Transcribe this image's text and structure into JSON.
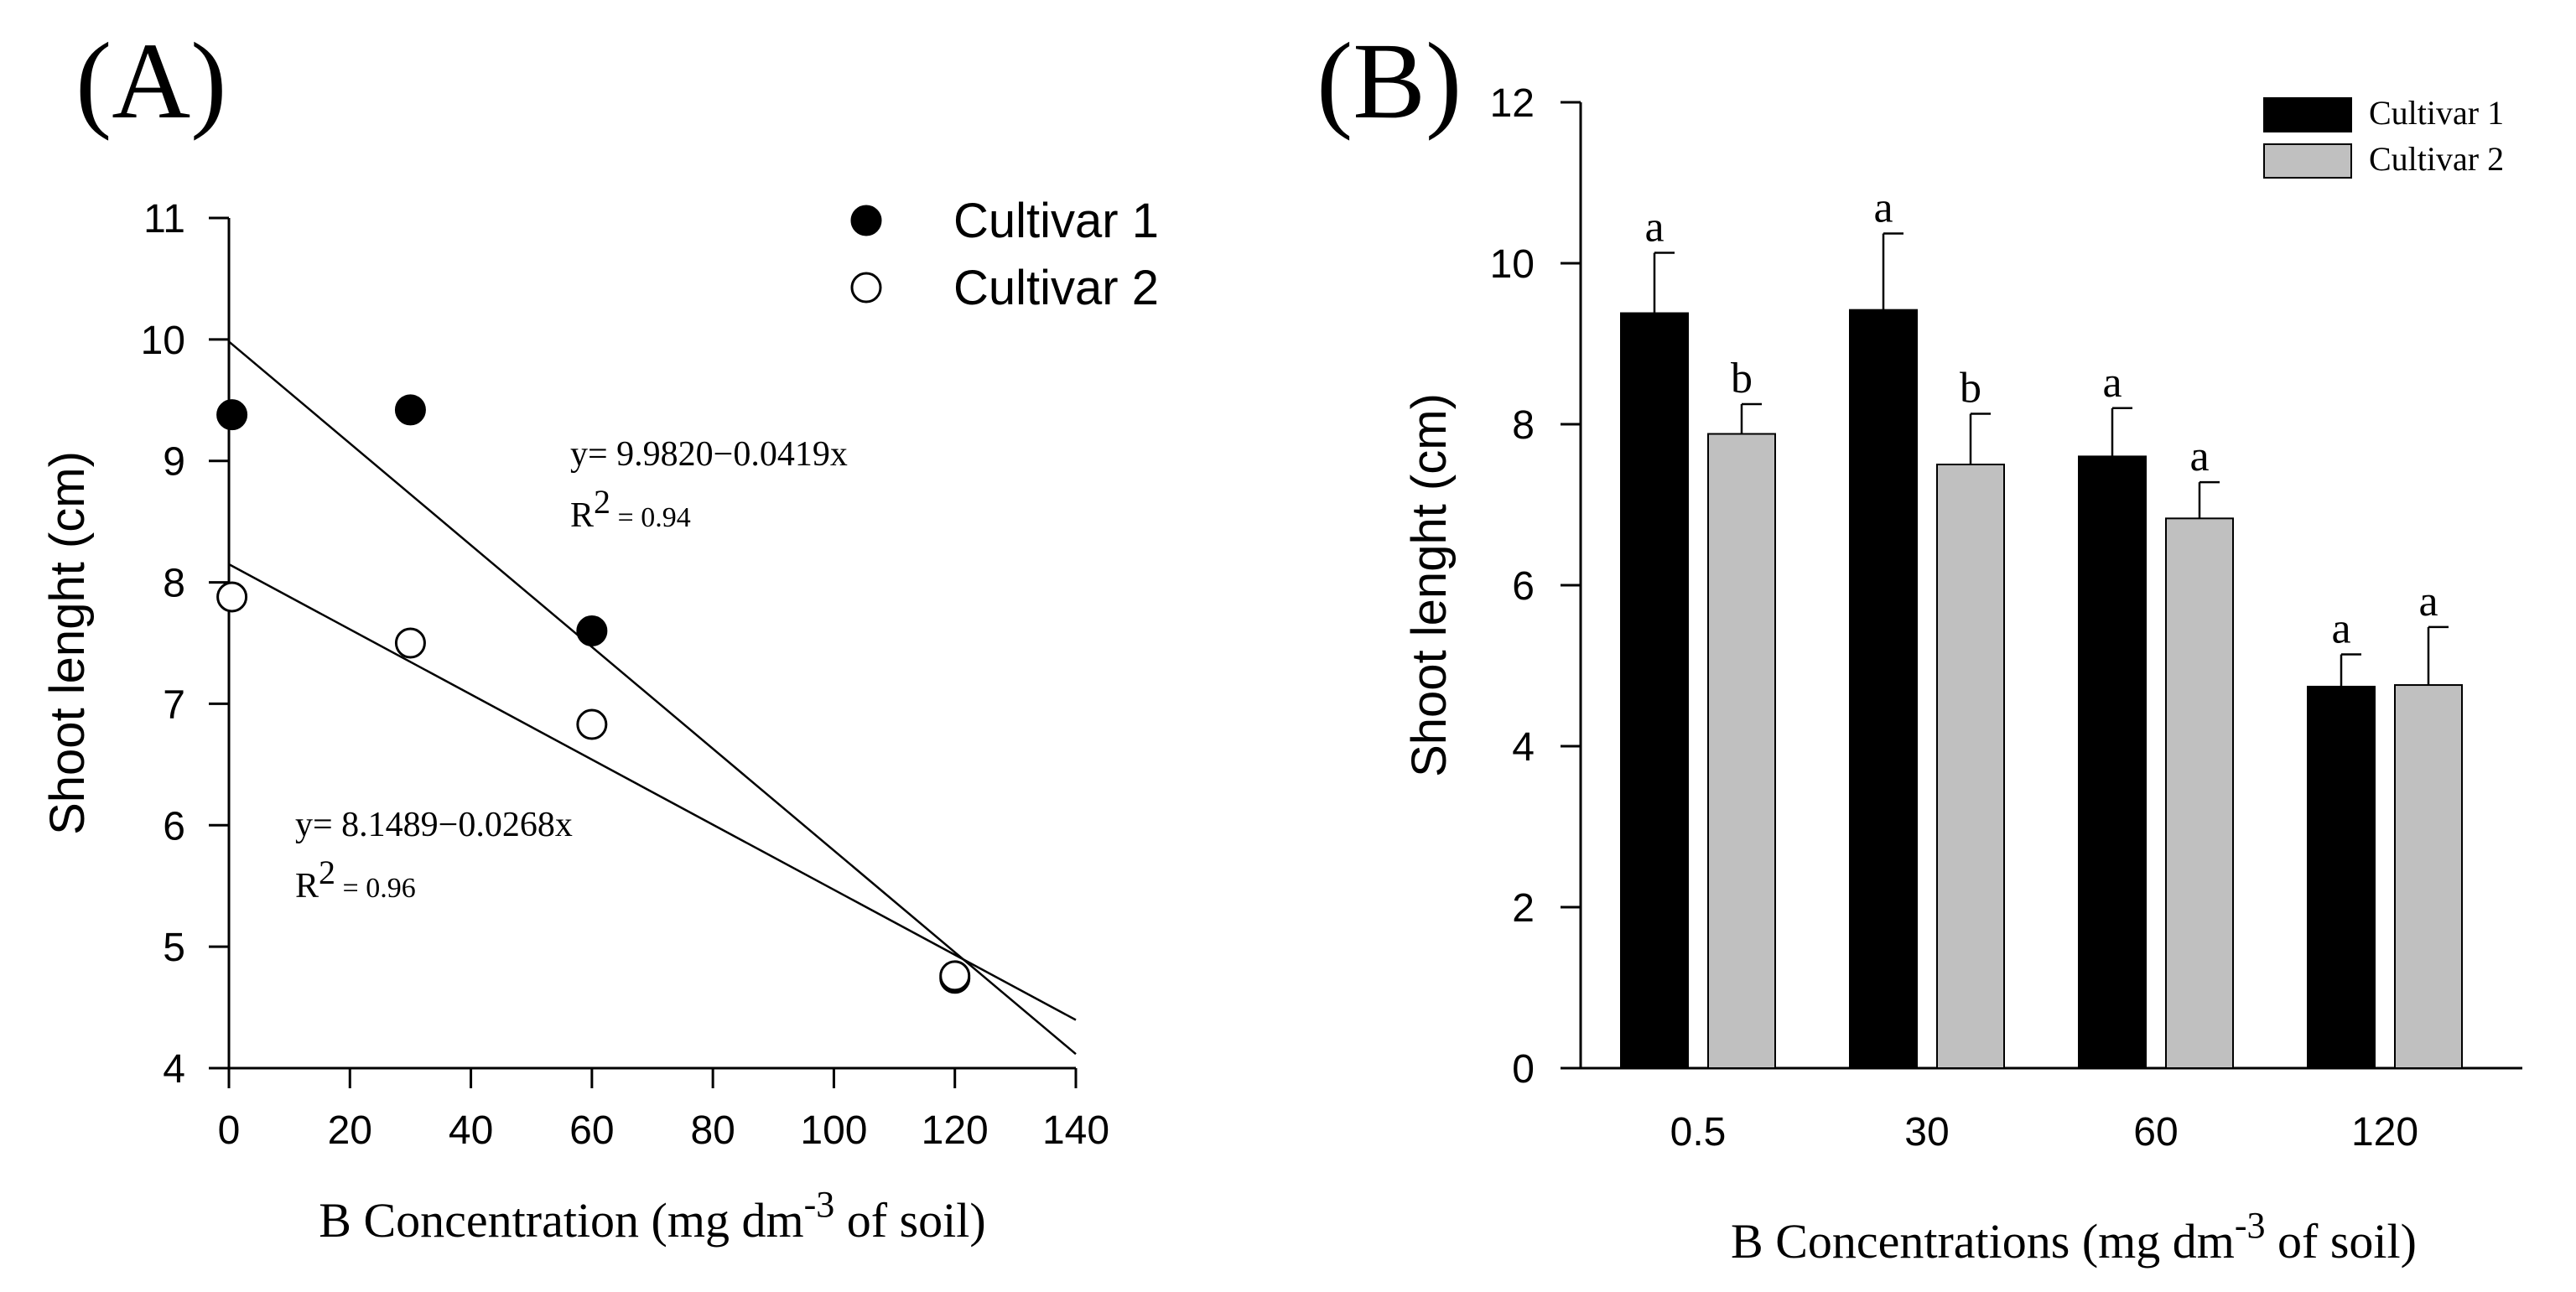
{
  "chart_data": [
    {
      "type": "scatter",
      "panel_label": "(A)",
      "xlabel": {
        "main": "B Concentration (mg dm",
        "sup": "-3",
        "tail": " of soil)"
      },
      "ylabel": "Shoot lenght (cm)",
      "xlim": [
        0,
        140
      ],
      "ylim": [
        4,
        11
      ],
      "xticks": [
        "0",
        "20",
        "40",
        "60",
        "80",
        "100",
        "120",
        "140"
      ],
      "yticks": [
        "4",
        "5",
        "6",
        "7",
        "8",
        "9",
        "10",
        "11"
      ],
      "series": [
        {
          "name": "Cultivar 1",
          "marker": "filled",
          "x": [
            0.5,
            30,
            60,
            120
          ],
          "y": [
            9.38,
            9.42,
            7.6,
            4.74
          ],
          "fit": {
            "intercept": 9.982,
            "slope": -0.0419
          },
          "equation": "y= 9.9820−0.0419x",
          "r2_label": "R",
          "r2_sup": "2",
          "r2_value": " = 0.94"
        },
        {
          "name": "Cultivar 2",
          "marker": "open",
          "x": [
            0.5,
            30,
            60,
            120
          ],
          "y": [
            7.88,
            7.5,
            6.83,
            4.76
          ],
          "fit": {
            "intercept": 8.1489,
            "slope": -0.0268
          },
          "equation": "y= 8.1489−0.0268x",
          "r2_label": "R",
          "r2_sup": "2",
          "r2_value": " = 0.96"
        }
      ],
      "legend": [
        "Cultivar 1",
        "Cultivar 2"
      ],
      "legend_position": "top-right"
    },
    {
      "type": "bar",
      "panel_label": "(B)",
      "xlabel": {
        "main": "B Concentrations (mg dm",
        "sup": "-3",
        "tail": " of soil)"
      },
      "ylabel": "Shoot lenght (cm)",
      "categories": [
        "0.5",
        "30",
        "60",
        "120"
      ],
      "ylim": [
        0,
        12
      ],
      "yticks": [
        "0",
        "2",
        "4",
        "6",
        "8",
        "10",
        "12"
      ],
      "series": [
        {
          "name": "Cultivar 1",
          "color": "#000000",
          "values": [
            9.38,
            9.42,
            7.6,
            4.74
          ],
          "errors": [
            0.75,
            0.95,
            0.6,
            0.4
          ],
          "letters": [
            "a",
            "a",
            "a",
            "a"
          ]
        },
        {
          "name": "Cultivar 2",
          "color": "#c0c0c0",
          "values": [
            7.88,
            7.5,
            6.83,
            4.76
          ],
          "errors": [
            0.37,
            0.63,
            0.45,
            0.72
          ],
          "letters": [
            "b",
            "b",
            "a",
            "a"
          ]
        }
      ],
      "legend": [
        "Cultivar 1",
        "Cultivar 2"
      ],
      "legend_position": "top-right"
    }
  ]
}
